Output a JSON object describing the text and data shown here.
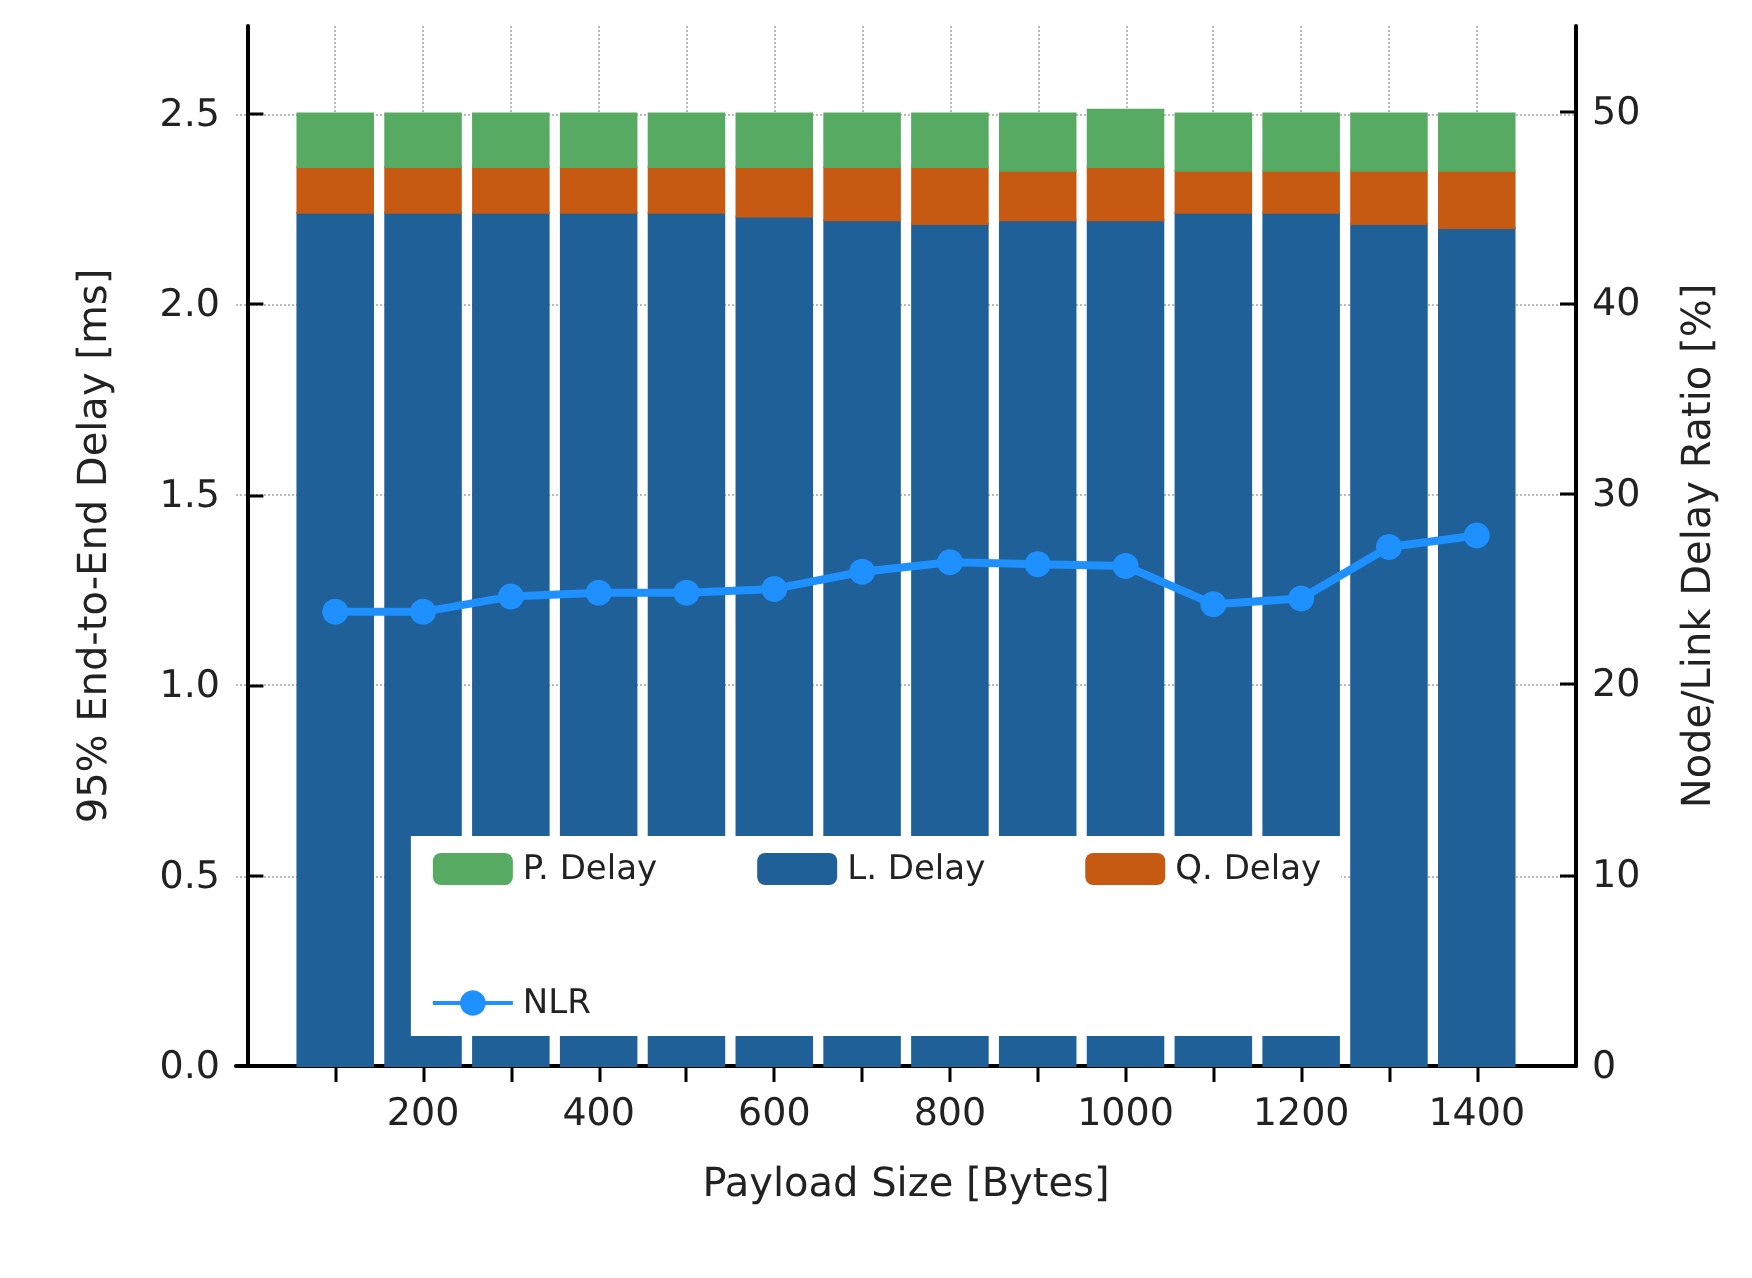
{
  "chart_data": {
    "type": "bar",
    "stacked": true,
    "x": [
      100,
      200,
      300,
      400,
      500,
      600,
      700,
      800,
      900,
      1000,
      1100,
      1200,
      1300,
      1400
    ],
    "series": [
      {
        "name": "L. Delay",
        "color": "#1f6098",
        "values": [
          2.24,
          2.24,
          2.24,
          2.24,
          2.24,
          2.23,
          2.22,
          2.21,
          2.22,
          2.22,
          2.24,
          2.24,
          2.21,
          2.2
        ]
      },
      {
        "name": "Q. Delay",
        "color": "#c75a12",
        "values": [
          0.12,
          0.12,
          0.12,
          0.12,
          0.12,
          0.13,
          0.14,
          0.15,
          0.13,
          0.14,
          0.11,
          0.11,
          0.14,
          0.15
        ]
      },
      {
        "name": "P. Delay",
        "color": "#56aa62",
        "values": [
          0.14,
          0.14,
          0.14,
          0.14,
          0.14,
          0.14,
          0.14,
          0.14,
          0.15,
          0.15,
          0.15,
          0.15,
          0.15,
          0.15
        ]
      },
      {
        "name": "NLR",
        "type": "line",
        "axis": "y2",
        "color": "#1e90ff",
        "values": [
          23.8,
          23.8,
          24.6,
          24.8,
          24.8,
          25.0,
          25.9,
          26.4,
          26.3,
          26.2,
          24.2,
          24.5,
          27.2,
          27.8
        ]
      }
    ],
    "xlabel": "Payload Size [Bytes]",
    "ylabel": "95% End-to-End Delay [ms]",
    "y2label": "Node/Link Delay Ratio [%]",
    "xlim": [
      -13,
      1513
    ],
    "xticks": [
      {
        "value": 100,
        "label": null
      },
      200,
      {
        "value": 300,
        "label": null
      },
      400,
      {
        "value": 500,
        "label": null
      },
      600,
      {
        "value": 700,
        "label": null
      },
      800,
      {
        "value": 900,
        "label": null
      },
      1000,
      {
        "value": 1100,
        "label": null
      },
      1200,
      {
        "value": 1300,
        "label": null
      },
      1400
    ],
    "ylim": [
      0,
      2.73
    ],
    "yticks": [
      {
        "value": 0,
        "label": "0.0"
      },
      0.5,
      {
        "value": 1,
        "label": "1.0"
      },
      1.5,
      {
        "value": 2,
        "label": "2.0"
      },
      2.5
    ],
    "y2lim": [
      0,
      54.5
    ],
    "y2ticks": [
      0,
      10,
      20,
      30,
      40,
      50
    ],
    "grid": true,
    "legend": "bottom",
    "marker": "circle"
  }
}
